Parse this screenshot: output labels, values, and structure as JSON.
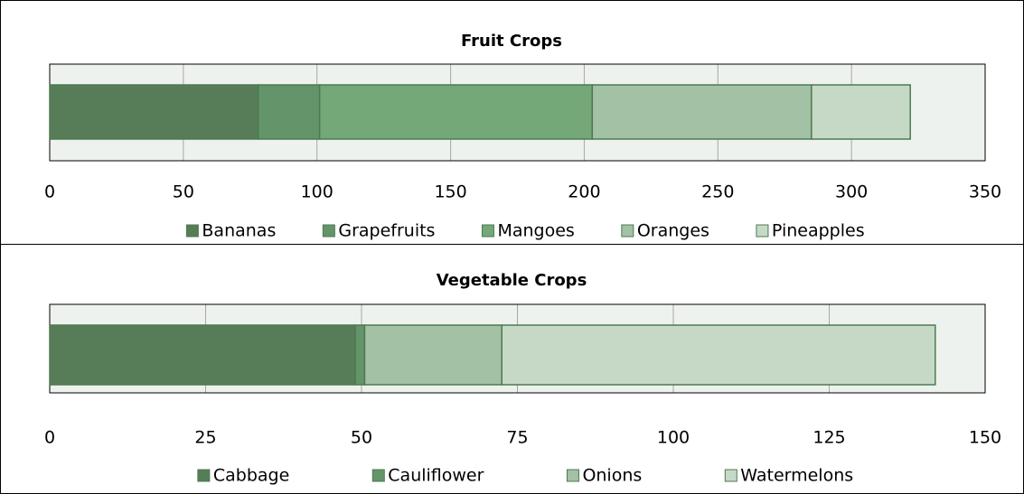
{
  "chart_data": [
    {
      "type": "bar",
      "orientation": "horizontal",
      "stacked": true,
      "title": "Fruit Crops",
      "categories": [
        null
      ],
      "series": [
        {
          "name": "Bananas",
          "color": "#577d58",
          "values": [
            78
          ]
        },
        {
          "name": "Grapefruits",
          "color": "#63946a",
          "values": [
            23
          ]
        },
        {
          "name": "Mangoes",
          "color": "#74a878",
          "values": [
            102
          ]
        },
        {
          "name": "Oranges",
          "color": "#a3c1a5",
          "values": [
            82
          ]
        },
        {
          "name": "Pineapples",
          "color": "#c6d9c7",
          "values": [
            37
          ]
        }
      ],
      "xlim": [
        0,
        350
      ],
      "xticks": [
        0,
        50,
        100,
        150,
        200,
        250,
        300,
        350
      ],
      "grid": true,
      "legend": "bottom"
    },
    {
      "type": "bar",
      "orientation": "horizontal",
      "stacked": true,
      "title": "Vegetable Crops",
      "categories": [
        null
      ],
      "series": [
        {
          "name": "Cabbage",
          "color": "#577d58",
          "values": [
            49
          ]
        },
        {
          "name": "Cauliflower",
          "color": "#63946a",
          "values": [
            1.5
          ]
        },
        {
          "name": "Onions",
          "color": "#a3c1a5",
          "values": [
            22
          ]
        },
        {
          "name": "Watermelons",
          "color": "#c6d9c7",
          "values": [
            69.5
          ]
        }
      ],
      "xlim": [
        0,
        150
      ],
      "xticks": [
        0,
        25,
        50,
        75,
        100,
        125,
        150
      ],
      "grid": true,
      "legend": "bottom"
    }
  ]
}
